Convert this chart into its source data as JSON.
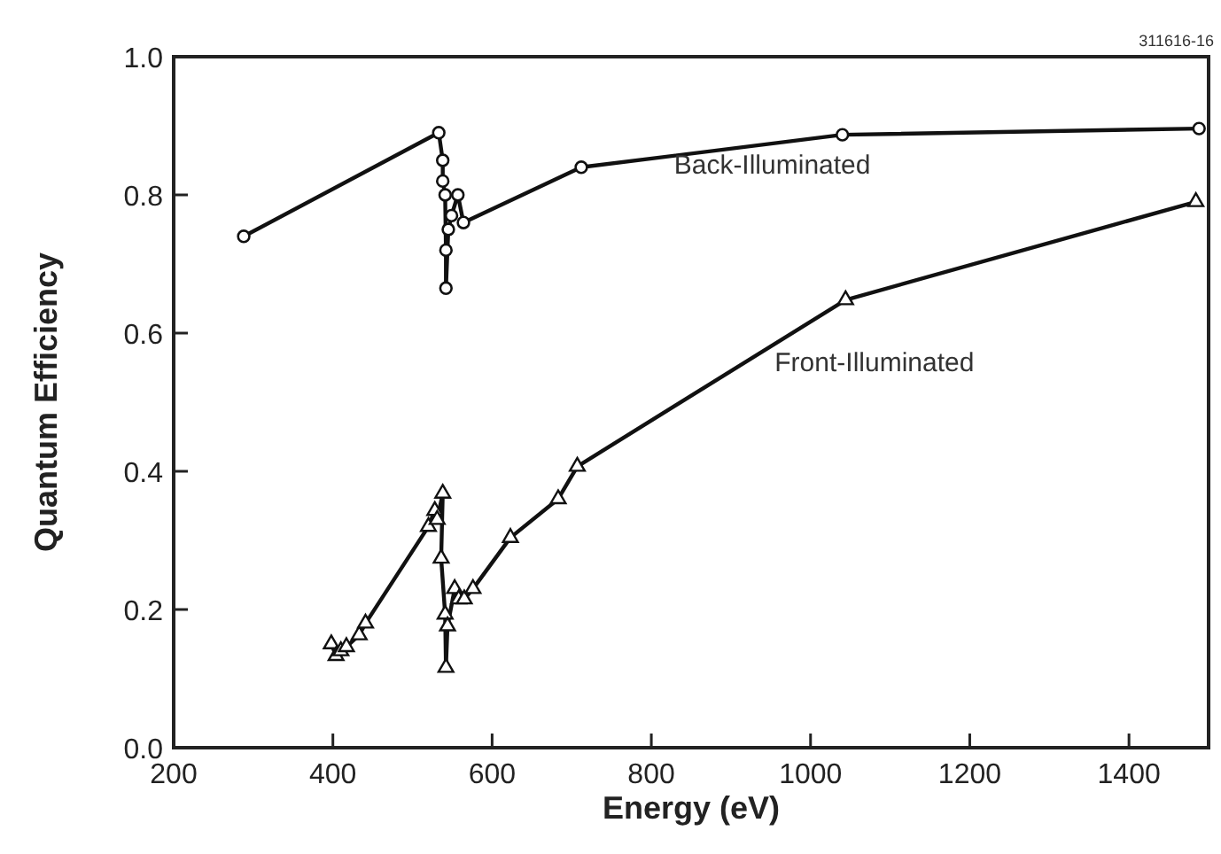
{
  "chart_data": {
    "type": "line",
    "xlabel": "Energy (eV)",
    "ylabel": "Quantum Efficiency",
    "annotations": [
      "311616-16"
    ],
    "xlim": [
      200,
      1500
    ],
    "xticks": [
      200,
      400,
      600,
      800,
      1000,
      1200,
      1400
    ],
    "ylim": [
      0,
      1
    ],
    "yticks": [
      {
        "value": 0,
        "label": "0.0"
      },
      {
        "value": 0.2,
        "label": "0.2"
      },
      {
        "value": 0.4,
        "label": "0.4"
      },
      {
        "value": 0.6,
        "label": "0.6"
      },
      {
        "value": 0.8,
        "label": "0.8"
      },
      {
        "value": 1,
        "label": "1.0"
      }
    ],
    "grid": false,
    "line_style": "solid",
    "series": [
      {
        "name": "Back-Illuminated",
        "color": "#111111",
        "marker": "circle",
        "x": [
          288,
          533,
          538,
          538,
          541,
          542,
          542,
          545,
          549,
          557,
          564,
          712,
          1040,
          1488
        ],
        "values": [
          0.74,
          0.89,
          0.85,
          0.82,
          0.8,
          0.72,
          0.665,
          0.75,
          0.77,
          0.8,
          0.76,
          0.84,
          0.887,
          0.896
        ]
      },
      {
        "name": "Front-Illuminated",
        "color": "#111111",
        "marker": "triangle",
        "x": [
          398,
          404,
          410,
          417,
          433,
          441,
          520,
          528,
          531,
          538,
          536,
          541,
          542,
          544,
          553,
          558,
          565,
          576,
          623,
          683,
          707,
          1044,
          1484
        ],
        "values": [
          0.15,
          0.133,
          0.14,
          0.146,
          0.163,
          0.18,
          0.32,
          0.343,
          0.33,
          0.368,
          0.274,
          0.193,
          0.116,
          0.176,
          0.23,
          0.215,
          0.215,
          0.23,
          0.304,
          0.36,
          0.407,
          0.648,
          0.79
        ]
      }
    ]
  }
}
